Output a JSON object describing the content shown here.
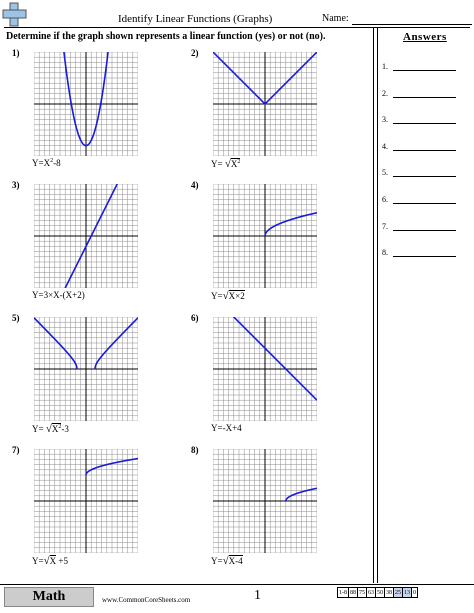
{
  "header": {
    "title": "Identify Linear Functions (Graphs)",
    "name_label": "Name:",
    "instructions": "Determine if the graph shown represents a linear function (yes) or not (no)."
  },
  "answers": {
    "heading": "Answers",
    "labels": [
      "1.",
      "2.",
      "3.",
      "4.",
      "5.",
      "6.",
      "7.",
      "8."
    ]
  },
  "problems": [
    {
      "num": "1)",
      "base": "Y=X",
      "sup": "2",
      "tail": "-8"
    },
    {
      "num": "2)",
      "base": "Y= ",
      "root": "X",
      "root_sup": "2",
      "tail": ""
    },
    {
      "num": "3)",
      "base": "Y=3×X-(X+2)",
      "tail": ""
    },
    {
      "num": "4)",
      "base": "Y=",
      "root": "X×2",
      "tail": ""
    },
    {
      "num": "5)",
      "base": "Y= ",
      "root": "X",
      "root_sup": "2",
      "tail": "-3"
    },
    {
      "num": "6)",
      "base": "Y=-X+4",
      "tail": ""
    },
    {
      "num": "7)",
      "base": "Y=",
      "root": "X",
      "tail": " +5"
    },
    {
      "num": "8)",
      "base": "Y=",
      "root": "X-4",
      "tail": ""
    }
  ],
  "footer": {
    "subject": "Math",
    "site": "www.CommonCoreSheets.com",
    "page": "1",
    "score_label": "1-8",
    "scores": [
      "88",
      "75",
      "63",
      "50",
      "38",
      "25",
      "13",
      "0"
    ]
  },
  "colors": {
    "curve": "#1a1adb",
    "grid": "#8c8c8c",
    "axis": "#000000",
    "highlight": "#c6d4ee"
  }
}
